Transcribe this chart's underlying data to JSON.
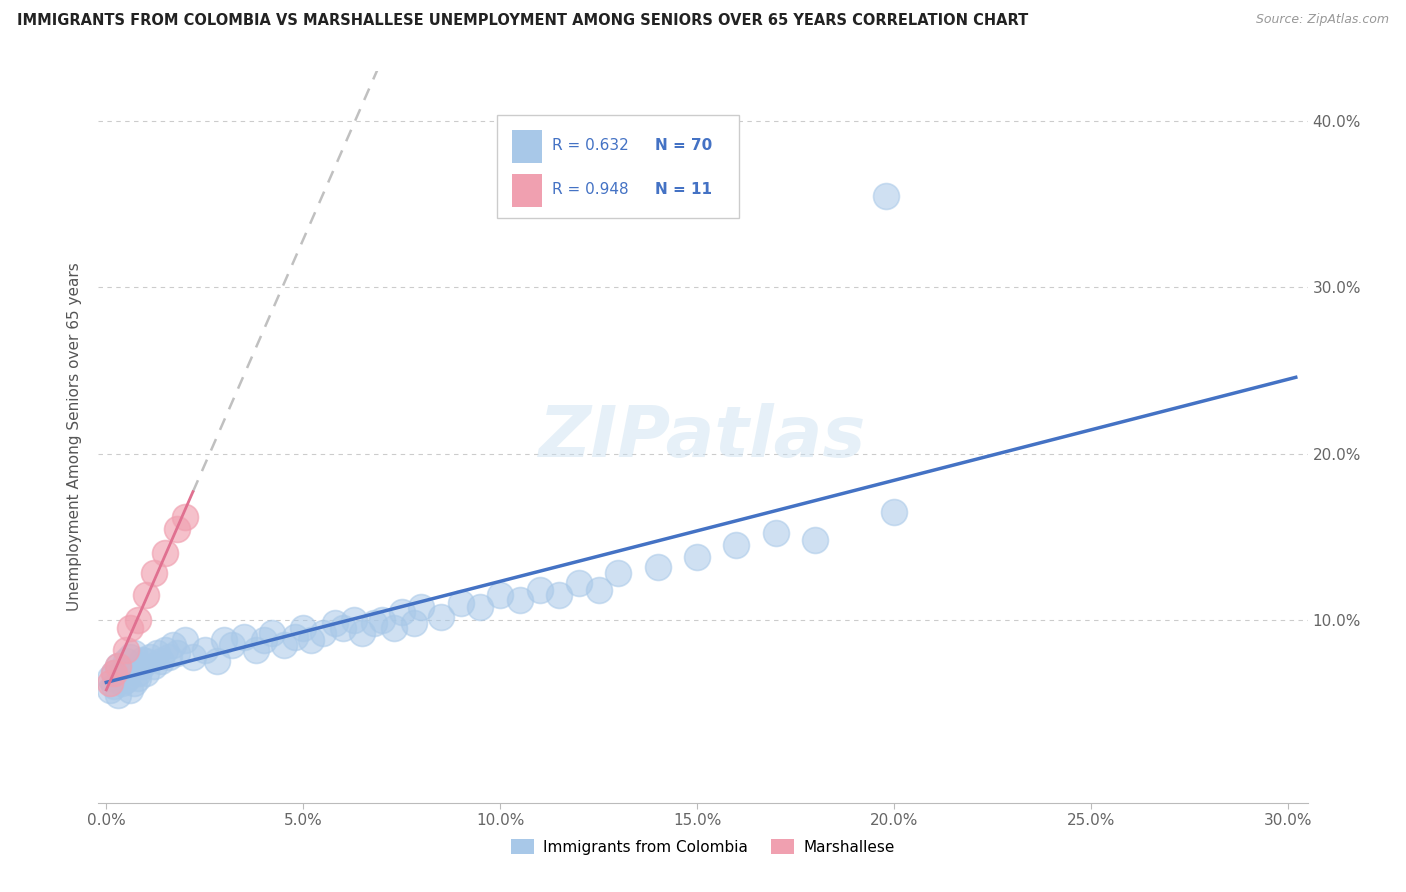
{
  "title": "IMMIGRANTS FROM COLOMBIA VS MARSHALLESE UNEMPLOYMENT AMONG SENIORS OVER 65 YEARS CORRELATION CHART",
  "source": "Source: ZipAtlas.com",
  "ylabel": "Unemployment Among Seniors over 65 years",
  "x_tick_labels": [
    "0.0%",
    "5.0%",
    "10.0%",
    "15.0%",
    "20.0%",
    "25.0%",
    "30.0%"
  ],
  "x_tick_values": [
    0.0,
    0.05,
    0.1,
    0.15,
    0.2,
    0.25,
    0.3
  ],
  "y_tick_labels": [
    "10.0%",
    "20.0%",
    "30.0%",
    "40.0%"
  ],
  "y_tick_values": [
    0.1,
    0.2,
    0.3,
    0.4
  ],
  "xlim": [
    -0.002,
    0.305
  ],
  "ylim": [
    -0.01,
    0.43
  ],
  "legend_r1": "R = 0.632",
  "legend_n1": "N = 70",
  "legend_r2": "R = 0.948",
  "legend_n2": "N = 11",
  "legend_label1": "Immigrants from Colombia",
  "legend_label2": "Marshallese",
  "color_blue": "#a8c8e8",
  "color_pink": "#f0a0b0",
  "color_blue_text": "#4472c4",
  "color_trendline_blue": "#4472c4",
  "color_trendline_pink": "#e07090",
  "color_trendline_gray": "#c0c0c0",
  "watermark": "ZIPatlas",
  "bg_color": "#ffffff",
  "grid_color": "#cccccc",
  "colombia_x": [
    0.001,
    0.001,
    0.002,
    0.002,
    0.003,
    0.003,
    0.004,
    0.004,
    0.005,
    0.005,
    0.006,
    0.006,
    0.007,
    0.007,
    0.008,
    0.008,
    0.009,
    0.009,
    0.01,
    0.01,
    0.011,
    0.012,
    0.013,
    0.014,
    0.015,
    0.016,
    0.017,
    0.018,
    0.02,
    0.022,
    0.025,
    0.028,
    0.03,
    0.032,
    0.035,
    0.038,
    0.04,
    0.042,
    0.045,
    0.048,
    0.05,
    0.052,
    0.055,
    0.058,
    0.06,
    0.063,
    0.065,
    0.068,
    0.07,
    0.073,
    0.075,
    0.078,
    0.08,
    0.085,
    0.09,
    0.095,
    0.1,
    0.105,
    0.11,
    0.115,
    0.12,
    0.125,
    0.13,
    0.14,
    0.15,
    0.16,
    0.17,
    0.18,
    0.2,
    0.198
  ],
  "colombia_y": [
    0.065,
    0.058,
    0.06,
    0.068,
    0.055,
    0.072,
    0.062,
    0.07,
    0.064,
    0.075,
    0.058,
    0.078,
    0.062,
    0.08,
    0.065,
    0.068,
    0.072,
    0.076,
    0.068,
    0.075,
    0.078,
    0.072,
    0.08,
    0.075,
    0.082,
    0.078,
    0.085,
    0.08,
    0.088,
    0.078,
    0.082,
    0.075,
    0.088,
    0.085,
    0.09,
    0.082,
    0.088,
    0.092,
    0.085,
    0.09,
    0.095,
    0.088,
    0.092,
    0.098,
    0.095,
    0.1,
    0.092,
    0.098,
    0.1,
    0.095,
    0.105,
    0.098,
    0.108,
    0.102,
    0.11,
    0.108,
    0.115,
    0.112,
    0.118,
    0.115,
    0.122,
    0.118,
    0.128,
    0.132,
    0.138,
    0.145,
    0.152,
    0.148,
    0.165,
    0.355
  ],
  "marshallese_x": [
    0.001,
    0.002,
    0.003,
    0.005,
    0.006,
    0.008,
    0.01,
    0.012,
    0.015,
    0.018,
    0.02
  ],
  "marshallese_y": [
    0.062,
    0.068,
    0.072,
    0.082,
    0.095,
    0.1,
    0.115,
    0.128,
    0.14,
    0.155,
    0.162
  ]
}
